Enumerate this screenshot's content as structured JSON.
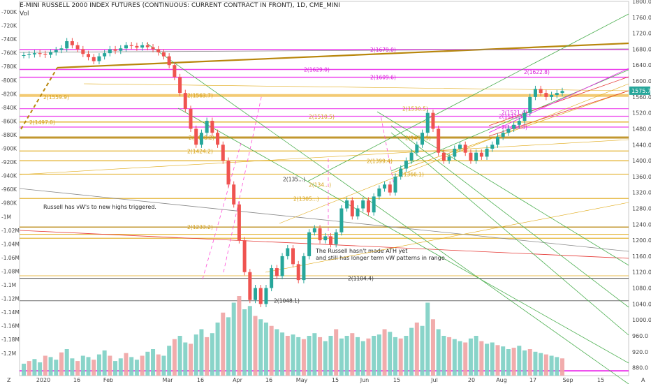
{
  "title": "E-MINI RUSSELL 2000 INDEX FUTURES (CONTINUOUS: CURRENT CONTRACT IN FRONT), 1D, CME_MINI",
  "volume_label": "Vol",
  "annotations": [
    {
      "id": "triggered",
      "text": "Russell has vW's to new highs triggered."
    },
    {
      "id": "ath",
      "text": "The Russell hasn't made ATH yet\nand still has longer term vW patterns in range."
    }
  ],
  "current_price": "1575.7",
  "timeframe_marker": "Z",
  "auto_marker": "A",
  "chart_data": {
    "type": "candlestick",
    "title": "E-MINI RUSSELL 2000 INDEX FUTURES (CONTINUOUS: CURRENT CONTRACT IN FRONT), 1D, CME_MINI",
    "right_axis": {
      "min": 860,
      "max": 1800,
      "ticks": [
        880,
        920,
        960,
        1000,
        1040,
        1080,
        1120,
        1160,
        1200,
        1240,
        1280,
        1320,
        1360,
        1400,
        1440,
        1480,
        1520,
        1560,
        1600,
        1640,
        1680,
        1720,
        1760,
        1800
      ]
    },
    "left_axis_ticks": [
      "-700K",
      "-720K",
      "-740K",
      "-760K",
      "-780K",
      "-800K",
      "-820K",
      "-840K",
      "-860K",
      "-880K",
      "-900K",
      "-920K",
      "-940K",
      "-960K",
      "-980K",
      "-1M",
      "-1.02M",
      "-1.04M",
      "-1.06M",
      "-1.08M",
      "-1.1M",
      "-1.12M",
      "-1.14M",
      "-1.16M",
      "-1.18M",
      "-1.2M"
    ],
    "x_ticks": [
      "2020",
      "16",
      "Feb",
      "Mar",
      "16",
      "Apr",
      "16",
      "May",
      "15",
      "Jun",
      "15",
      "Jul",
      "20",
      "Aug",
      "17",
      "Sep",
      "15"
    ],
    "level_labels": [
      {
        "text": "2(1679.0)",
        "price": 1679,
        "color": "#d81bd8"
      },
      {
        "text": "2(1629.0)",
        "price": 1629,
        "color": "#d81bd8"
      },
      {
        "text": "2(1622.8)",
        "price": 1622.8,
        "color": "#d81bd8"
      },
      {
        "text": "2(1609.6)",
        "price": 1609.6,
        "color": "#d81bd8"
      },
      {
        "text": "2(1563.7)",
        "price": 1563.7,
        "color": "#d4a017"
      },
      {
        "text": "2(1559.9)",
        "price": 1559.9,
        "color": "#d4a017"
      },
      {
        "text": "2(1530.5)",
        "price": 1530.5,
        "color": "#d4a017"
      },
      {
        "text": "2(1521.4)",
        "price": 1521.4,
        "color": "#d81bd8"
      },
      {
        "text": "2(1510.5)",
        "price": 1510.5,
        "color": "#d4a017"
      },
      {
        "text": "2(1511.5)",
        "price": 1511.5,
        "color": "#d81bd8"
      },
      {
        "text": "2(1497.0)",
        "price": 1497,
        "color": "#d4a017"
      },
      {
        "text": "2(1484.3)",
        "price": 1484.3,
        "color": "#d81bd8"
      },
      {
        "text": "2(1458.2)",
        "price": 1458.2,
        "color": "#d4a017"
      },
      {
        "text": "2(1457.3)",
        "price": 1457.3,
        "color": "#d4a017"
      },
      {
        "text": "2(1424.2)",
        "price": 1424.2,
        "color": "#d4a017"
      },
      {
        "text": "2(1399.4)",
        "price": 1399.4,
        "color": "#d4a017"
      },
      {
        "text": "2(1366.1)",
        "price": 1366.1,
        "color": "#d4a017"
      },
      {
        "text": "2(135...)",
        "price": 1354,
        "color": "#333333"
      },
      {
        "text": "2(134...)",
        "price": 1340,
        "color": "#d4a017"
      },
      {
        "text": "2(1305...)",
        "price": 1305,
        "color": "#d4a017"
      },
      {
        "text": "2(1233.2)",
        "price": 1233.2,
        "color": "#d4a017"
      },
      {
        "text": "2(1104.4)",
        "price": 1104.4,
        "color": "#333333"
      },
      {
        "text": "2(1048.1)",
        "price": 1048.1,
        "color": "#333333"
      }
    ],
    "horizontal_levels": [
      {
        "price": 1679,
        "color": "#e91ee9",
        "width": 1.5
      },
      {
        "price": 1629,
        "color": "#e91ee9",
        "width": 1.5
      },
      {
        "price": 1609.6,
        "color": "#e91ee9",
        "width": 1.5
      },
      {
        "price": 1563.7,
        "color": "#f2c15b",
        "width": 4
      },
      {
        "price": 1530.5,
        "color": "#e91ee9",
        "width": 1.2
      },
      {
        "price": 1511.5,
        "color": "#e91ee9",
        "width": 1.2
      },
      {
        "price": 1497,
        "color": "#e0a915",
        "width": 1.5
      },
      {
        "price": 1484.3,
        "color": "#e91ee9",
        "width": 1.2
      },
      {
        "price": 1458,
        "color": "#b8860b",
        "width": 3
      },
      {
        "price": 1424.2,
        "color": "#e0a915",
        "width": 1.2
      },
      {
        "price": 1399.4,
        "color": "#e0a915",
        "width": 1.2
      },
      {
        "price": 1366.1,
        "color": "#e0a915",
        "width": 1.2
      },
      {
        "price": 1305,
        "color": "#e0a915",
        "width": 1.2
      },
      {
        "price": 1233.2,
        "color": "#b8860b",
        "width": 1.5
      },
      {
        "price": 1215,
        "color": "#e0a915",
        "width": 1.2
      },
      {
        "price": 1205,
        "color": "#e0a915",
        "width": 1.2
      },
      {
        "price": 1104.4,
        "color": "#333333",
        "width": 1
      },
      {
        "price": 1048.1,
        "color": "#555555",
        "width": 1
      },
      {
        "price": 872,
        "color": "#e91ee9",
        "width": 2
      }
    ],
    "series": [
      {
        "name": "price",
        "points": [
          [
            1,
            1665
          ],
          [
            2,
            1667
          ],
          [
            3,
            1670
          ],
          [
            4,
            1668
          ],
          [
            5,
            1666
          ],
          [
            6,
            1672
          ],
          [
            7,
            1678
          ],
          [
            8,
            1682
          ],
          [
            9,
            1700
          ],
          [
            10,
            1690
          ],
          [
            11,
            1680
          ],
          [
            12,
            1668
          ],
          [
            13,
            1660
          ],
          [
            14,
            1650
          ],
          [
            15,
            1662
          ],
          [
            16,
            1670
          ],
          [
            17,
            1680
          ],
          [
            18,
            1676
          ],
          [
            19,
            1682
          ],
          [
            20,
            1690
          ],
          [
            21,
            1688
          ],
          [
            22,
            1684
          ],
          [
            23,
            1690
          ],
          [
            24,
            1685
          ],
          [
            25,
            1680
          ],
          [
            26,
            1672
          ],
          [
            27,
            1662
          ],
          [
            28,
            1640
          ],
          [
            29,
            1610
          ],
          [
            30,
            1570
          ],
          [
            31,
            1530
          ],
          [
            32,
            1480
          ],
          [
            33,
            1440
          ],
          [
            34,
            1470
          ],
          [
            35,
            1500
          ],
          [
            36,
            1470
          ],
          [
            37,
            1440
          ],
          [
            38,
            1400
          ],
          [
            39,
            1340
          ],
          [
            40,
            1290
          ],
          [
            41,
            1200
          ],
          [
            42,
            1120
          ],
          [
            43,
            1050
          ],
          [
            44,
            1080
          ],
          [
            45,
            1040
          ],
          [
            46,
            1080
          ],
          [
            47,
            1130
          ],
          [
            48,
            1110
          ],
          [
            49,
            1160
          ],
          [
            50,
            1180
          ],
          [
            51,
            1140
          ],
          [
            52,
            1100
          ],
          [
            53,
            1160
          ],
          [
            54,
            1220
          ],
          [
            55,
            1230
          ],
          [
            56,
            1200
          ],
          [
            57,
            1210
          ],
          [
            58,
            1190
          ],
          [
            59,
            1220
          ],
          [
            60,
            1280
          ],
          [
            61,
            1300
          ],
          [
            62,
            1260
          ],
          [
            63,
            1280
          ],
          [
            64,
            1300
          ],
          [
            65,
            1270
          ],
          [
            66,
            1310
          ],
          [
            67,
            1330
          ],
          [
            68,
            1340
          ],
          [
            69,
            1320
          ],
          [
            70,
            1360
          ],
          [
            71,
            1380
          ],
          [
            72,
            1400
          ],
          [
            73,
            1420
          ],
          [
            74,
            1440
          ],
          [
            75,
            1470
          ],
          [
            76,
            1520
          ],
          [
            77,
            1480
          ],
          [
            78,
            1420
          ],
          [
            79,
            1400
          ],
          [
            80,
            1410
          ],
          [
            81,
            1430
          ],
          [
            82,
            1440
          ],
          [
            83,
            1420
          ],
          [
            84,
            1400
          ],
          [
            85,
            1420
          ],
          [
            86,
            1410
          ],
          [
            87,
            1430
          ],
          [
            88,
            1440
          ],
          [
            89,
            1460
          ],
          [
            90,
            1470
          ],
          [
            91,
            1480
          ],
          [
            92,
            1490
          ],
          [
            93,
            1500
          ],
          [
            94,
            1520
          ],
          [
            95,
            1560
          ],
          [
            96,
            1580
          ],
          [
            97,
            1570
          ],
          [
            98,
            1560
          ],
          [
            99,
            1565
          ],
          [
            100,
            1570
          ],
          [
            101,
            1575
          ]
        ]
      },
      {
        "name": "volume",
        "values": [
          18,
          22,
          25,
          20,
          30,
          28,
          24,
          35,
          40,
          26,
          22,
          30,
          28,
          24,
          32,
          38,
          30,
          22,
          26,
          34,
          28,
          24,
          30,
          36,
          40,
          32,
          30,
          45,
          55,
          60,
          50,
          48,
          62,
          70,
          58,
          64,
          80,
          95,
          88,
          110,
          120,
          100,
          105,
          90,
          85,
          80,
          75,
          70,
          65,
          60,
          62,
          58,
          55,
          60,
          64,
          58,
          52,
          60,
          70,
          56,
          60,
          64,
          58,
          52,
          56,
          60,
          62,
          70,
          66,
          58,
          56,
          60,
          72,
          80,
          75,
          110,
          85,
          70,
          60,
          58,
          55,
          52,
          50,
          56,
          60,
          52,
          48,
          50,
          46,
          44,
          40,
          42,
          45,
          38,
          40,
          36,
          34,
          32,
          30,
          28,
          26
        ]
      }
    ]
  }
}
